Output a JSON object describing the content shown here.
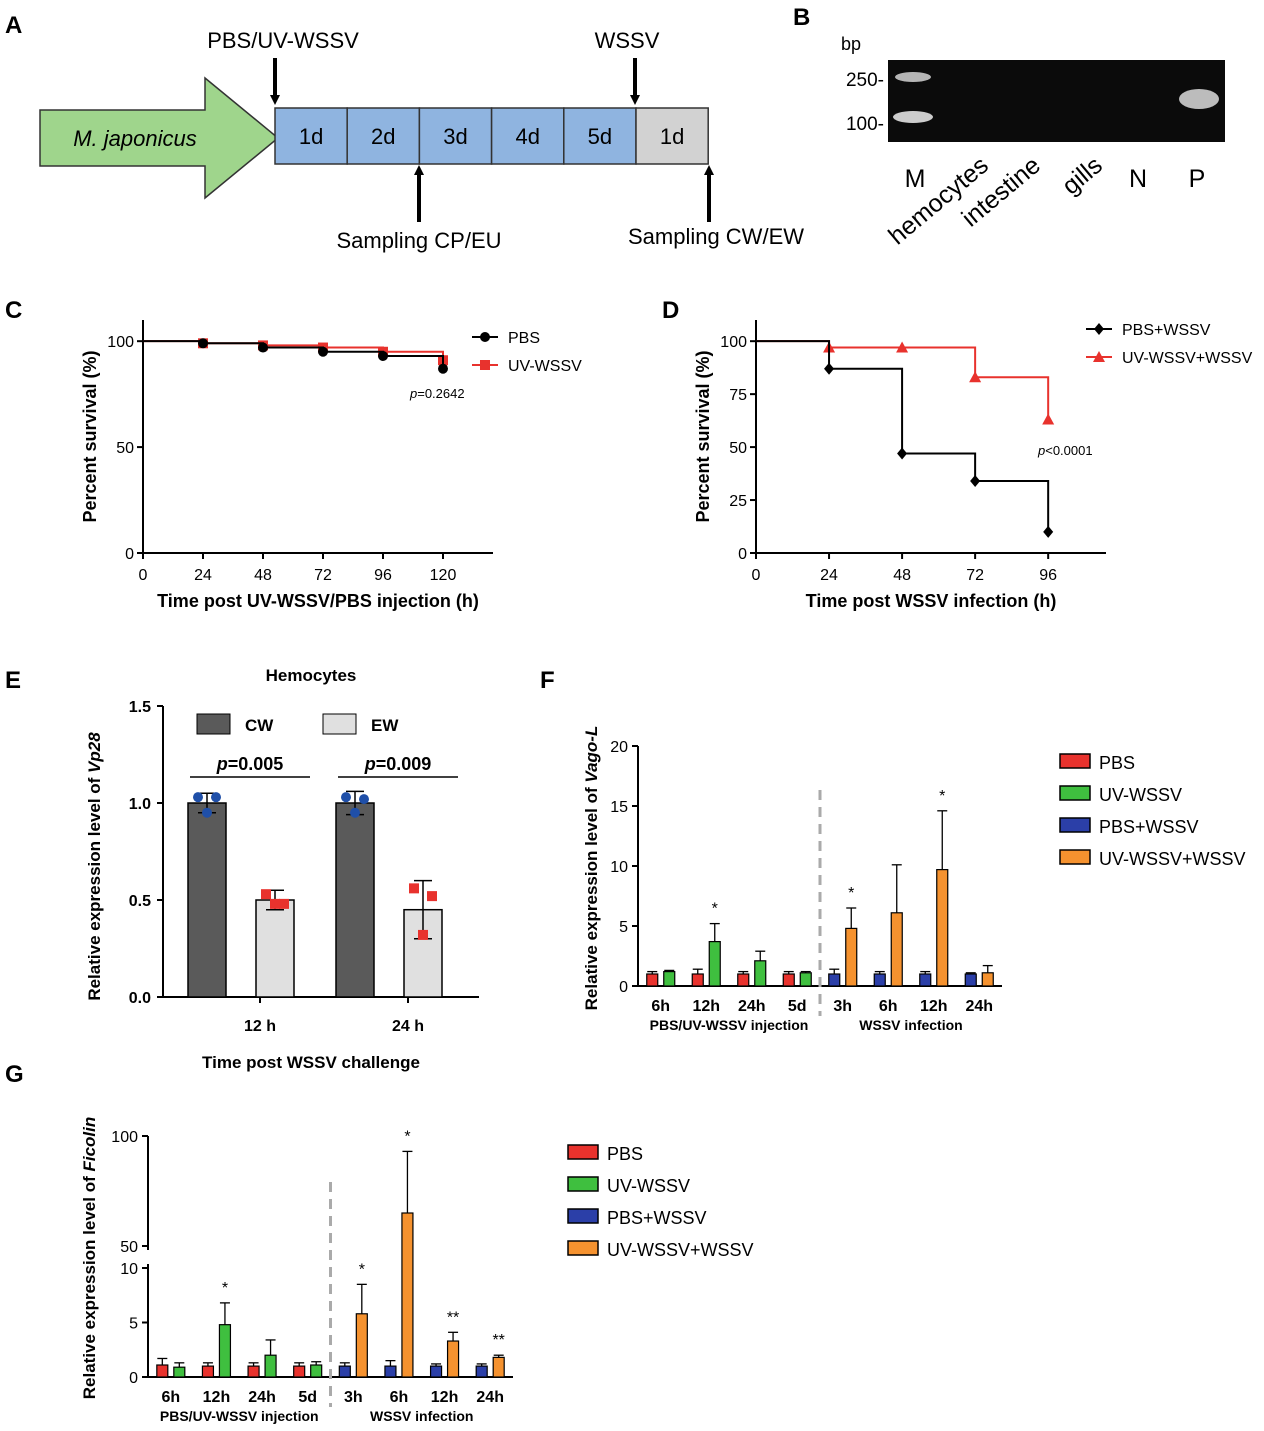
{
  "panel_labels": [
    "A",
    "B",
    "C",
    "D",
    "E",
    "F",
    "G"
  ],
  "panel_a": {
    "species": "M. japonicus",
    "top_left_label": "PBS/UV-WSSV",
    "top_right_label": "WSSV",
    "days": [
      "1d",
      "2d",
      "3d",
      "4d",
      "5d"
    ],
    "post_day": "1d",
    "bottom_left_label": "Sampling CP/EU",
    "bottom_right_label": "Sampling CW/EW",
    "colors": {
      "arrow": "#9fd58c",
      "day_box": "#8fb4e0",
      "post_box": "#d2d2d2"
    }
  },
  "panel_b": {
    "unit": "bp",
    "ladder": [
      "250-",
      "100-"
    ],
    "lanes": [
      "M",
      "hemocytes",
      "intestine",
      "gills",
      "N",
      "P"
    ]
  },
  "chart_data": [
    {
      "panel": "C",
      "type": "line",
      "xlabel": "Time post UV-WSSV/PBS injection (h)",
      "ylabel": "Percent survival (%)",
      "xlim": [
        0,
        140
      ],
      "ylim": [
        0,
        110
      ],
      "xticks": [
        0,
        24,
        48,
        72,
        96,
        120
      ],
      "yticks": [
        0,
        50,
        100
      ],
      "pvalue": {
        "p": "p",
        "rest": "=0.2642"
      },
      "series": [
        {
          "name": "PBS",
          "color": "#000000",
          "marker": "circle",
          "x": [
            0,
            24,
            48,
            72,
            96,
            120
          ],
          "y": [
            100,
            99,
            97,
            95,
            93,
            87
          ]
        },
        {
          "name": "UV-WSSV",
          "color": "#e8322d",
          "marker": "square",
          "x": [
            0,
            24,
            48,
            72,
            96,
            120
          ],
          "y": [
            100,
            99,
            98,
            97,
            95,
            91
          ]
        }
      ]
    },
    {
      "panel": "D",
      "type": "line",
      "xlabel": "Time post WSSV infection (h)",
      "ylabel": "Percent survival (%)",
      "xlim": [
        0,
        115
      ],
      "ylim": [
        0,
        110
      ],
      "xticks": [
        0,
        24,
        48,
        72,
        96
      ],
      "yticks": [
        0,
        25,
        50,
        75,
        100
      ],
      "pvalue": {
        "p": "p",
        "rest": "<0.0001"
      },
      "series": [
        {
          "name": "PBS+WSSV",
          "color": "#000000",
          "marker": "diamond",
          "x": [
            0,
            24,
            48,
            72,
            96
          ],
          "y": [
            100,
            87,
            47,
            34,
            10
          ]
        },
        {
          "name": "UV-WSSV+WSSV",
          "color": "#e8322d",
          "marker": "triangle",
          "x": [
            0,
            24,
            48,
            72,
            96
          ],
          "y": [
            100,
            97,
            97,
            83,
            63
          ]
        }
      ]
    },
    {
      "panel": "E",
      "type": "bar",
      "title": "Hemocytes",
      "xlabel": "Time post WSSV challenge",
      "ylabel_prefix": "Relative expression level of ",
      "ylabel_gene": "Vp28",
      "ylim": [
        0,
        1.5
      ],
      "yticks": [
        "0.0",
        "0.5",
        "1.0",
        "1.5"
      ],
      "categories": [
        "12 h",
        "24 h"
      ],
      "pvalues": [
        {
          "p": "p",
          "rest": "=0.005"
        },
        {
          "p": "p",
          "rest": "=0.009"
        }
      ],
      "series": [
        {
          "name": "CW",
          "color": "#5a5a5a",
          "values": [
            1.0,
            1.0
          ],
          "errors": [
            0.05,
            0.06
          ],
          "points": [
            [
              1.03,
              0.95,
              1.03
            ],
            [
              1.03,
              0.95,
              1.02
            ]
          ],
          "point_color": "#1f4fa8"
        },
        {
          "name": "EW",
          "color": "#e0e0e0",
          "values": [
            0.5,
            0.45
          ],
          "errors": [
            0.05,
            0.15
          ],
          "points": [
            [
              0.53,
              0.48,
              0.48
            ],
            [
              0.56,
              0.32,
              0.52
            ]
          ],
          "point_color": "#e8322d"
        }
      ]
    },
    {
      "panel": "F",
      "type": "bar",
      "ylabel_prefix": "Relative expression level of ",
      "ylabel_gene": "Vago-L",
      "ylim": [
        0,
        20
      ],
      "yticks": [
        0,
        5,
        10,
        15,
        20
      ],
      "categories": [
        "6h",
        "12h",
        "24h",
        "5d",
        "3h",
        "6h",
        "12h",
        "24h"
      ],
      "group_labels": [
        "PBS/UV-WSSV injection",
        "WSSV infection"
      ],
      "control_values": [
        1.0,
        1.0,
        1.0,
        1.0,
        1.0,
        1.0,
        1.0,
        1.0
      ],
      "control_errors": [
        0.2,
        0.4,
        0.2,
        0.2,
        0.4,
        0.2,
        0.2,
        0.1
      ],
      "treatment_values": [
        1.2,
        3.7,
        2.1,
        1.1,
        4.8,
        6.1,
        9.7,
        1.1
      ],
      "treatment_errors": [
        0.1,
        1.5,
        0.8,
        0.1,
        1.7,
        4.0,
        4.9,
        0.6
      ],
      "significance": [
        "",
        "*",
        "",
        "",
        "*",
        "",
        "*",
        ""
      ],
      "legend": [
        {
          "name": "PBS",
          "color": "#e8322d"
        },
        {
          "name": "UV-WSSV",
          "color": "#3fbf3f"
        },
        {
          "name": "PBS+WSSV",
          "color": "#2b3fa8"
        },
        {
          "name": "UV-WSSV+WSSV",
          "color": "#f5922f"
        }
      ]
    },
    {
      "panel": "G",
      "type": "bar",
      "ylabel_prefix": "Relative expression level of ",
      "ylabel_gene": "Ficolin",
      "ylim_lower": [
        0,
        10
      ],
      "ylim_upper": [
        50,
        100
      ],
      "yticks": [
        0,
        5,
        10,
        50,
        100
      ],
      "categories": [
        "6h",
        "12h",
        "24h",
        "5d",
        "3h",
        "6h",
        "12h",
        "24h"
      ],
      "group_labels": [
        "PBS/UV-WSSV injection",
        "WSSV infection"
      ],
      "control_values": [
        1.1,
        1.0,
        1.0,
        1.0,
        1.0,
        1.0,
        1.0,
        1.0
      ],
      "control_errors": [
        0.6,
        0.3,
        0.3,
        0.3,
        0.3,
        0.5,
        0.2,
        0.2
      ],
      "treatment_values": [
        0.9,
        4.8,
        2.0,
        1.1,
        5.8,
        65,
        3.3,
        1.8
      ],
      "treatment_errors": [
        0.4,
        2.0,
        1.4,
        0.3,
        2.7,
        28,
        0.8,
        0.2
      ],
      "significance": [
        "",
        "*",
        "",
        "",
        "*",
        "*",
        "**",
        "**"
      ],
      "legend": [
        {
          "name": "PBS",
          "color": "#e8322d"
        },
        {
          "name": "UV-WSSV",
          "color": "#3fbf3f"
        },
        {
          "name": "PBS+WSSV",
          "color": "#2b3fa8"
        },
        {
          "name": "UV-WSSV+WSSV",
          "color": "#f5922f"
        }
      ]
    }
  ]
}
